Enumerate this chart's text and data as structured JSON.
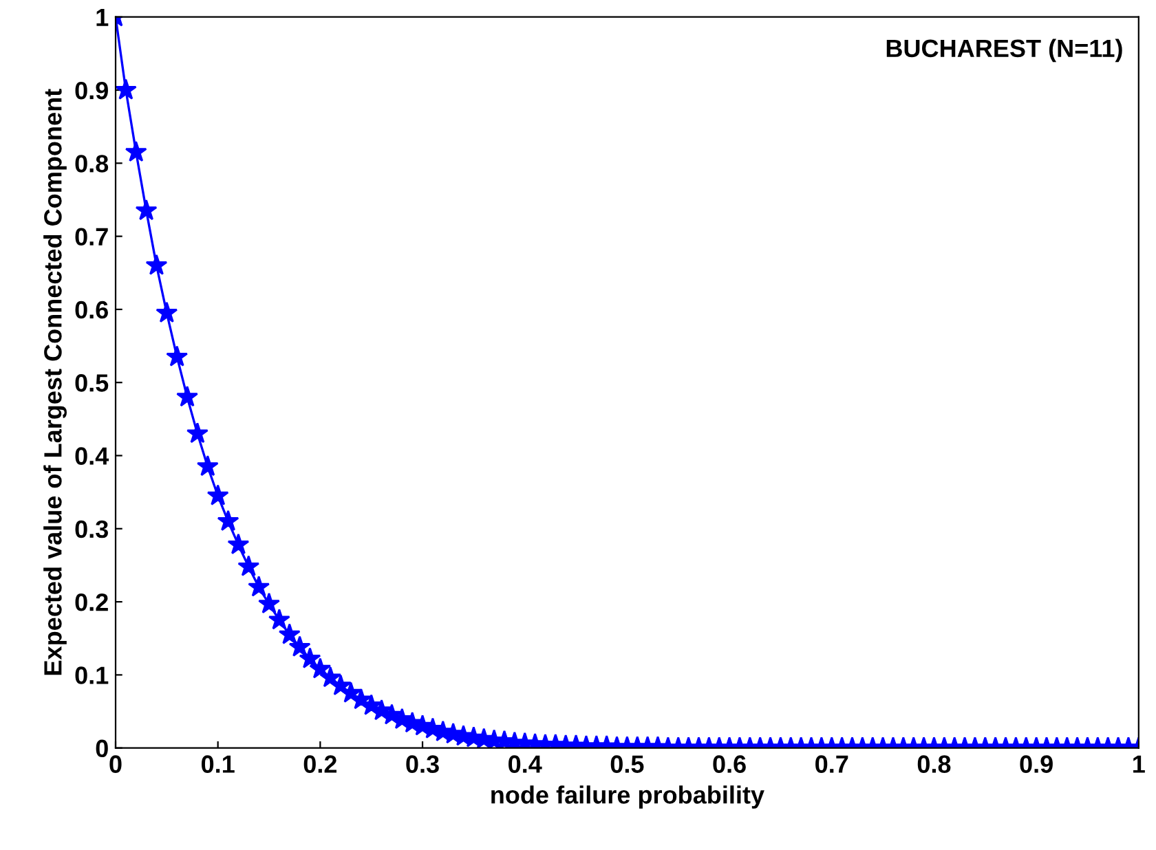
{
  "chart_data": {
    "type": "line",
    "title": "BUCHAREST (N=11)",
    "xlabel": "node failure probability",
    "ylabel": "Expected value of Largest Connected Component",
    "x": [
      0,
      0.01,
      0.02,
      0.03,
      0.04,
      0.05,
      0.06,
      0.07,
      0.08,
      0.09,
      0.1,
      0.11,
      0.12,
      0.13,
      0.14,
      0.15,
      0.16,
      0.17,
      0.18,
      0.19,
      0.2,
      0.21,
      0.22,
      0.23,
      0.24,
      0.25,
      0.26,
      0.27,
      0.28,
      0.29,
      0.3,
      0.31,
      0.32,
      0.33,
      0.34,
      0.35,
      0.36,
      0.37,
      0.38,
      0.39,
      0.4,
      0.41,
      0.42,
      0.43,
      0.44,
      0.45,
      0.46,
      0.47,
      0.48,
      0.49,
      0.5,
      0.51,
      0.52,
      0.53,
      0.54,
      0.55,
      0.56,
      0.57,
      0.58,
      0.59,
      0.6,
      0.61,
      0.62,
      0.63,
      0.64,
      0.65,
      0.66,
      0.67,
      0.68,
      0.69,
      0.7,
      0.71,
      0.72,
      0.73,
      0.74,
      0.75,
      0.76,
      0.77,
      0.78,
      0.79,
      0.8,
      0.81,
      0.82,
      0.83,
      0.84,
      0.85,
      0.86,
      0.87,
      0.88,
      0.89,
      0.9,
      0.91,
      0.92,
      0.93,
      0.94,
      0.95,
      0.96,
      0.97,
      0.98,
      0.99,
      1
    ],
    "series": [
      {
        "color": "#0000ff",
        "values": [
          1,
          0.9,
          0.815,
          0.735,
          0.66,
          0.595,
          0.535,
          0.48,
          0.43,
          0.385,
          0.345,
          0.31,
          0.278,
          0.248,
          0.22,
          0.197,
          0.175,
          0.155,
          0.138,
          0.122,
          0.108,
          0.096,
          0.085,
          0.075,
          0.066,
          0.058,
          0.051,
          0.045,
          0.039,
          0.034,
          0.03,
          0.026,
          0.022,
          0.019,
          0.016,
          0.014,
          0.012,
          0.01,
          0.009,
          0.007,
          0.006,
          0.005,
          0.004,
          0.004,
          0.003,
          0.003,
          0.002,
          0.002,
          0.002,
          0.001,
          0.001,
          0.001,
          0.001,
          0.001,
          0,
          0,
          0,
          0,
          0,
          0,
          0,
          0,
          0,
          0,
          0,
          0,
          0,
          0,
          0,
          0,
          0,
          0,
          0,
          0,
          0,
          0,
          0,
          0,
          0,
          0,
          0,
          0,
          0,
          0,
          0,
          0,
          0,
          0,
          0,
          0,
          0,
          0,
          0,
          0,
          0,
          0,
          0,
          0,
          0,
          0,
          0
        ]
      }
    ],
    "xlim": [
      0,
      1
    ],
    "ylim": [
      0,
      1
    ],
    "xticks": [
      0,
      0.1,
      0.2,
      0.3,
      0.4,
      0.5,
      0.6,
      0.7,
      0.8,
      0.9,
      1
    ],
    "yticks": [
      0,
      0.1,
      0.2,
      0.3,
      0.4,
      0.5,
      0.6,
      0.7,
      0.8,
      0.9,
      1
    ],
    "marker": "star",
    "line_style": "solid",
    "grid": false,
    "legend": false
  }
}
